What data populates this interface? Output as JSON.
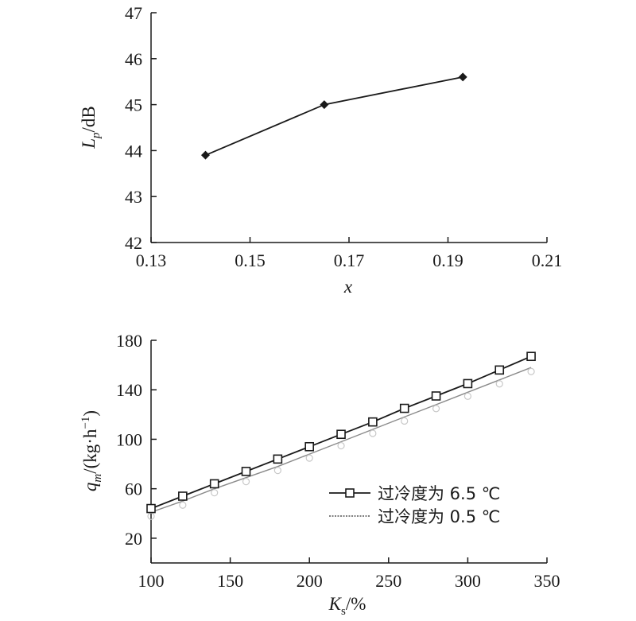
{
  "chart_data": [
    {
      "type": "line",
      "title": "",
      "xlabel": "x",
      "ylabel_main": "L",
      "ylabel_sub": "p",
      "ylabel_rest": "/dB",
      "xlim": [
        0.13,
        0.21
      ],
      "ylim": [
        42,
        47
      ],
      "x_ticks": [
        "0.13",
        "0.15",
        "0.17",
        "0.19",
        "0.21"
      ],
      "y_ticks": [
        "42",
        "43",
        "44",
        "45",
        "46",
        "47"
      ],
      "grid": false,
      "series": [
        {
          "x": [
            0.141,
            0.165,
            0.193
          ],
          "y": [
            43.9,
            45.0,
            45.6
          ],
          "marker": "diamond",
          "color": "#1a1a1a"
        }
      ]
    },
    {
      "type": "line",
      "title": "",
      "xlabel_main": "K",
      "xlabel_sub": "s",
      "xlabel_rest": "/%",
      "ylabel_main": "q",
      "ylabel_sub": "m",
      "ylabel_rest": "/(kg·h",
      "ylabel_sup": "−1",
      "ylabel_end": ")",
      "xlim": [
        100,
        350
      ],
      "ylim": [
        0,
        180
      ],
      "x_ticks": [
        "100",
        "150",
        "200",
        "250",
        "300",
        "350"
      ],
      "y_ticks": [
        "20",
        "60",
        "100",
        "140",
        "180"
      ],
      "grid": false,
      "legend": "center-right",
      "series": [
        {
          "name": "过冷度为 6.5 ℃",
          "x": [
            100,
            120,
            140,
            160,
            180,
            200,
            220,
            240,
            260,
            280,
            300,
            320,
            340
          ],
          "y": [
            44,
            54,
            64,
            74,
            84,
            94,
            104,
            114,
            125,
            135,
            145,
            156,
            167
          ],
          "marker": "square",
          "color": "#1a1a1a"
        },
        {
          "name": "过冷度为 0.5 ℃",
          "x": [
            100,
            120,
            140,
            160,
            180,
            200,
            220,
            240,
            260,
            280,
            300,
            320,
            340
          ],
          "y": [
            41,
            50,
            60,
            69,
            78,
            88,
            98,
            108,
            118,
            128,
            138,
            148,
            158
          ],
          "marker": "circle",
          "color": "#8a8a8a"
        }
      ]
    }
  ]
}
